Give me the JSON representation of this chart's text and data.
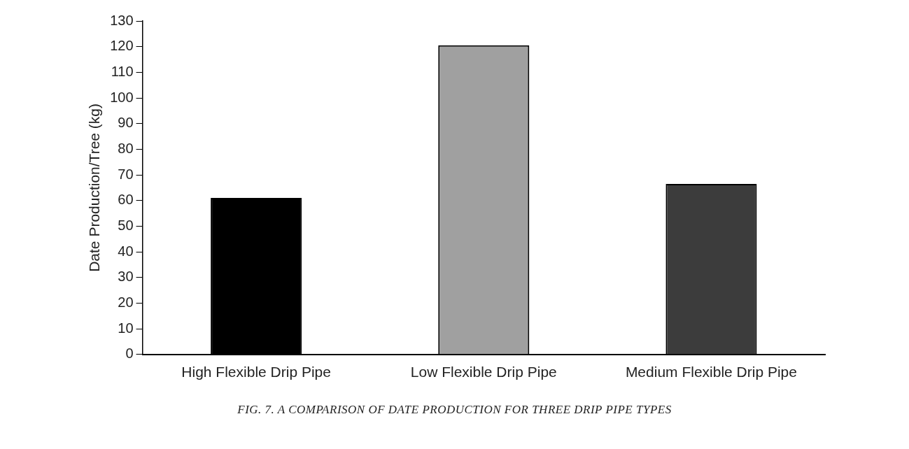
{
  "chart_data": {
    "type": "bar",
    "ylabel": "Date Production/Tree (kg)",
    "categories": [
      "High Flexible Drip Pipe",
      "Low Flexible Drip Pipe",
      "Medium Flexible Drip Pipe"
    ],
    "values": [
      61,
      120.5,
      66.5
    ],
    "colors": [
      "#000000",
      "#a0a0a0",
      "#3c3c3c"
    ],
    "ylim": [
      0,
      130
    ],
    "yticks": [
      0,
      10,
      20,
      30,
      40,
      50,
      60,
      70,
      80,
      90,
      100,
      110,
      120,
      130
    ],
    "grid": false,
    "legend": false,
    "annotations": [
      "FIG. 7. A COMPARISON OF DATE PRODUCTION FOR THREE DRIP PIPE TYPES"
    ]
  }
}
